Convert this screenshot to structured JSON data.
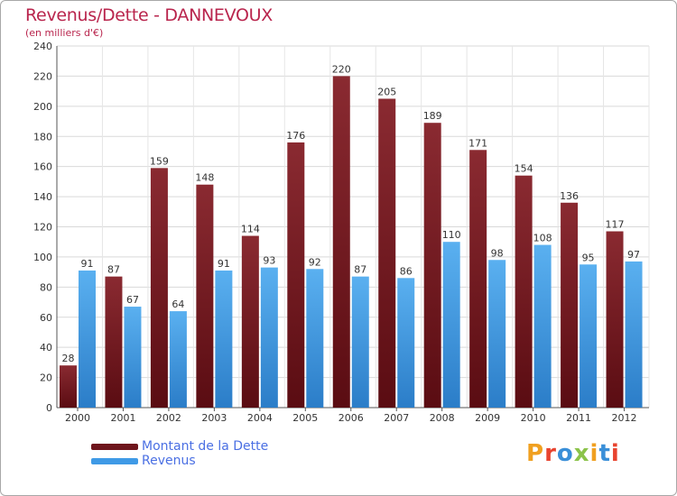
{
  "chart_data": {
    "type": "bar",
    "title": "Revenus/Dette - DANNEVOUX",
    "subtitle": "(en milliers d'€)",
    "categories": [
      "2000",
      "2001",
      "2002",
      "2003",
      "2004",
      "2005",
      "2006",
      "2007",
      "2008",
      "2009",
      "2010",
      "2011",
      "2012"
    ],
    "series": [
      {
        "name": "Montant de la Dette",
        "color": "#7a1e24",
        "values": [
          28,
          87,
          159,
          148,
          114,
          176,
          220,
          205,
          189,
          171,
          154,
          136,
          117
        ]
      },
      {
        "name": "Revenus",
        "color": "#3f9ae6",
        "values": [
          91,
          67,
          64,
          91,
          93,
          92,
          87,
          86,
          110,
          98,
          108,
          95,
          97
        ]
      }
    ],
    "ylim": [
      0,
      240
    ],
    "yticks": [
      0,
      20,
      40,
      60,
      80,
      100,
      120,
      140,
      160,
      180,
      200,
      220,
      240
    ],
    "grid": true,
    "legend_position": "bottom-left"
  },
  "brand": {
    "text": "Proxiti",
    "colors": [
      "#f0a020",
      "#e8432e",
      "#3a8fd8",
      "#8bc34a",
      "#f0a020",
      "#3a8fd8",
      "#e8432e"
    ]
  }
}
